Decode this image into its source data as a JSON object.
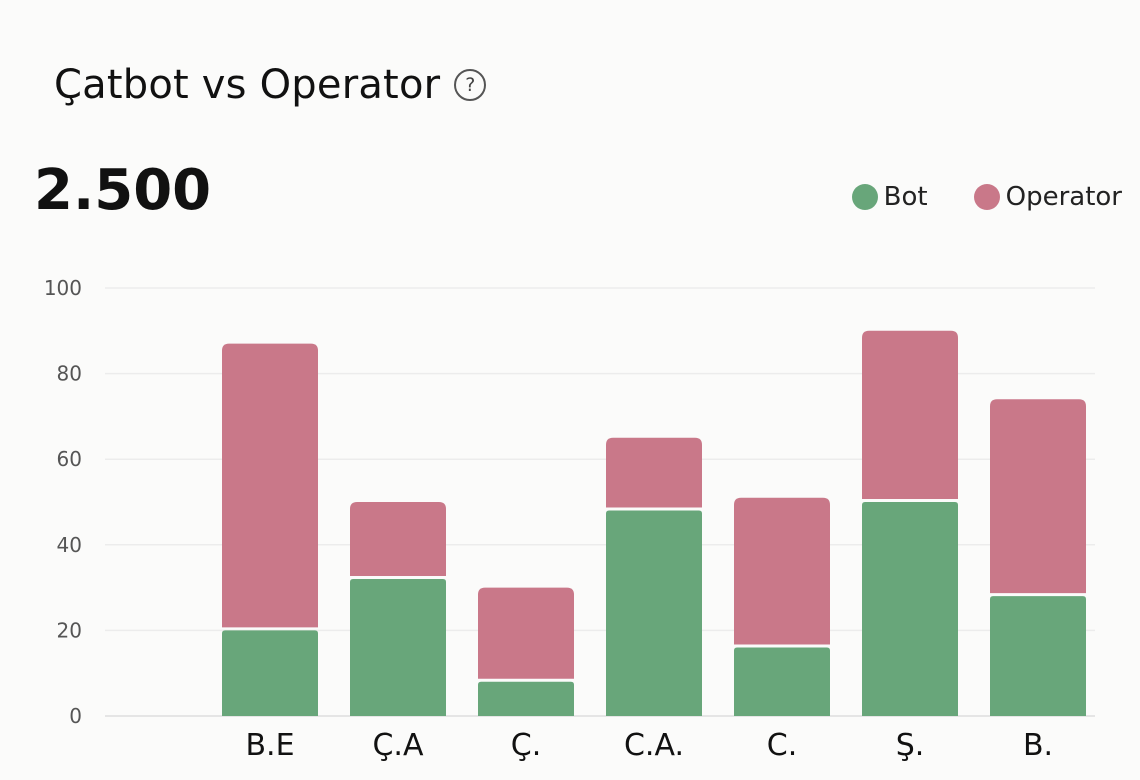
{
  "header": {
    "title": "Çatbot vs Operator",
    "help_icon": "?",
    "total": "2.500"
  },
  "chart_data": {
    "type": "bar",
    "stacked": true,
    "categories": [
      "B.E",
      "Ç.A",
      "Ç.",
      "C.A.",
      "C.",
      "Ş.",
      "B."
    ],
    "series": [
      {
        "name": "Bot",
        "color": "#68a67a",
        "values": [
          20,
          32,
          8,
          48,
          16,
          50,
          28
        ]
      },
      {
        "name": "Operator",
        "color": "#c97889",
        "values": [
          67,
          18,
          22,
          17,
          35,
          40,
          46
        ]
      }
    ],
    "ylim": [
      0,
      100
    ],
    "yticks": [
      0,
      20,
      40,
      60,
      80,
      100
    ],
    "grid": true,
    "legend": "top-right",
    "title": "",
    "xlabel": "",
    "ylabel": ""
  }
}
